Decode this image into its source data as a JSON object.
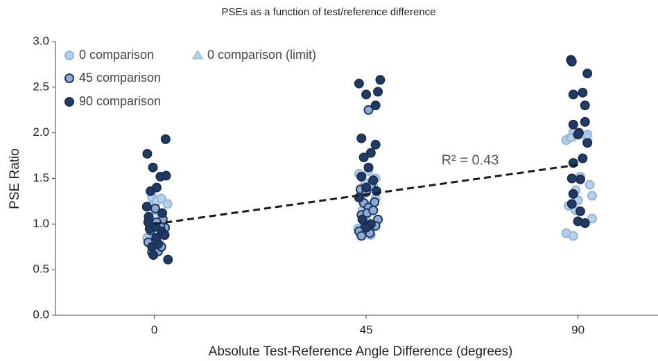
{
  "chart_data": {
    "type": "scatter",
    "title": "PSEs as a function of test/reference difference",
    "x_label": "Absolute Test-Reference Angle Difference (degrees)",
    "y_label": "PSE Ratio",
    "xlim": [
      -21,
      107
    ],
    "ylim": [
      0,
      3
    ],
    "xticks": [
      0,
      45,
      90
    ],
    "yticks": [
      {
        "value": 0,
        "label": "0.0"
      },
      0.5,
      {
        "value": 1,
        "label": "1.0"
      },
      1.5,
      {
        "value": 2,
        "label": "2.0"
      },
      2.5,
      {
        "value": 3,
        "label": "3.0"
      }
    ],
    "annotation": "R² = 0.43",
    "trendline": {
      "x": [
        0,
        90
      ],
      "y": [
        1.0,
        1.65
      ],
      "color": "#1a1a1a"
    },
    "series": [
      {
        "name": "0 comparison",
        "marker": "circle",
        "color": "#b7d0ea",
        "edge": "#93b4da",
        "x": [
          -0.5,
          0.5,
          1.5,
          2.8,
          -1,
          0.3,
          1.5,
          -0.8,
          0.8,
          2,
          -1.5,
          1,
          43.5,
          45.5,
          47,
          44.8,
          46.5,
          44,
          45.5,
          47,
          44.2,
          45,
          46,
          43.3,
          87.5,
          88.5,
          92,
          90.5,
          89.5,
          92.5,
          88,
          90,
          93,
          89.5,
          87.5,
          89,
          93
        ],
        "values": [
          1.3,
          1.25,
          1.28,
          1.22,
          1.2,
          1.15,
          1.1,
          1.05,
          0.98,
          0.9,
          0.85,
          0.8,
          1.55,
          1.58,
          1.5,
          1.45,
          1.42,
          1.32,
          1.2,
          1.28,
          1.15,
          1.04,
          0.88,
          0.95,
          1.92,
          1.95,
          1.98,
          1.52,
          1.37,
          1.43,
          1.2,
          1.26,
          1.31,
          1.15,
          0.9,
          0.87,
          1.06
        ]
      },
      {
        "name": "0 comparison (limit)",
        "marker": "triangle",
        "color": "#b7d0ea",
        "edge": "#93b4da",
        "x": [
          89,
          90.5,
          92,
          88.5
        ],
        "values": [
          2.05,
          1.98,
          1.95,
          1.95
        ]
      },
      {
        "name": "45 comparison",
        "marker": "circle",
        "color": "#8eaad0",
        "edge": "#1f3864",
        "x": [
          -1.3,
          -0.5,
          0.8,
          1.5,
          2.3,
          1.8,
          0.5,
          -0.8,
          0.2,
          1.3,
          43.8,
          45,
          46,
          44.5,
          45.5,
          46.8,
          44,
          45.2,
          46.5,
          47.5,
          44.8,
          45.8,
          43.5,
          44,
          47,
          45.5
        ],
        "values": [
          0.8,
          0.69,
          0.7,
          0.75,
          0.96,
          1.05,
          1.02,
          0.93,
          1.17,
          0.97,
          1.38,
          1.35,
          1.42,
          1.23,
          1.18,
          1.24,
          1.1,
          1.12,
          1.15,
          1.05,
          0.98,
          0.9,
          0.92,
          0.87,
          0.98,
          2.25
        ]
      },
      {
        "name": "90 comparison",
        "marker": "circle",
        "color": "#1f3b66",
        "edge": "#1a2f52",
        "x": [
          -1.5,
          2.4,
          -0.3,
          1.3,
          2.5,
          -0.8,
          0.5,
          -1.6,
          -1.2,
          1.7,
          -1,
          0.3,
          1.5,
          -0.5,
          0.8,
          2.2,
          -0.2,
          2.9,
          0.4,
          -1.3,
          43.5,
          45,
          47.5,
          48,
          47,
          44,
          46,
          44.5,
          47,
          45.5,
          44,
          46.5,
          45,
          43.5,
          47.2,
          44.2,
          46,
          45,
          88.5,
          88.7,
          92,
          89,
          91,
          91.5,
          89,
          90.2,
          91.5,
          92,
          90,
          89,
          91,
          88.7,
          90.5,
          89,
          88.7,
          90.5,
          90,
          91.5
        ],
        "values": [
          1.77,
          1.93,
          1.62,
          1.52,
          1.53,
          1.36,
          1.4,
          1.19,
          1.08,
          1.12,
          0.95,
          0.97,
          0.92,
          0.75,
          0.78,
          0.88,
          0.66,
          0.61,
          0.85,
          1.02,
          2.54,
          2.42,
          2.45,
          2.58,
          2.3,
          1.94,
          1.78,
          1.73,
          1.87,
          1.62,
          1.52,
          1.48,
          1.4,
          1.29,
          1.36,
          1.05,
          1.0,
          0.96,
          2.8,
          2.78,
          2.65,
          2.42,
          2.44,
          2.3,
          2.09,
          2.0,
          2.12,
          1.89,
          1.98,
          1.67,
          1.72,
          1.5,
          1.49,
          1.33,
          1.22,
          1.14,
          1.03,
          1.01
        ]
      }
    ]
  }
}
